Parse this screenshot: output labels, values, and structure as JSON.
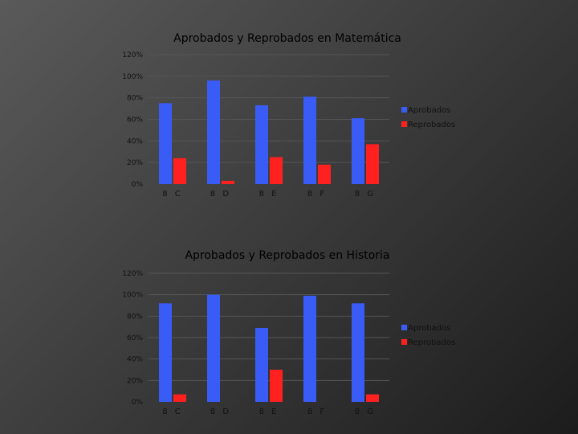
{
  "colors": {
    "aprobados": "#3a5cf6",
    "reprobados": "#ff2020"
  },
  "chart_data": [
    {
      "type": "bar",
      "title": "Aprobados y Reprobados en Matemática",
      "categories": [
        "8 C",
        "8 D",
        "8 E",
        "8 F",
        "8 G"
      ],
      "ylim": [
        0,
        120
      ],
      "yticks": [
        "0%",
        "20%",
        "40%",
        "60%",
        "80%",
        "100%",
        "120%"
      ],
      "series": [
        {
          "name": "Aprobados",
          "values": [
            75,
            96,
            73,
            81,
            61
          ]
        },
        {
          "name": "Reprobados",
          "values": [
            24,
            3,
            25,
            18,
            37
          ]
        }
      ],
      "legend": "right"
    },
    {
      "type": "bar",
      "title": "Aprobados y Reprobados en Historia",
      "categories": [
        "8 C",
        "8 D",
        "8 E",
        "8 F",
        "8 G"
      ],
      "ylim": [
        0,
        120
      ],
      "yticks": [
        "0%",
        "20%",
        "40%",
        "60%",
        "80%",
        "100%",
        "120%"
      ],
      "series": [
        {
          "name": "Aprobados",
          "values": [
            92,
            100,
            69,
            99,
            92
          ]
        },
        {
          "name": "Reprobados",
          "values": [
            7,
            0,
            30,
            0,
            7
          ]
        }
      ],
      "legend": "right"
    }
  ]
}
